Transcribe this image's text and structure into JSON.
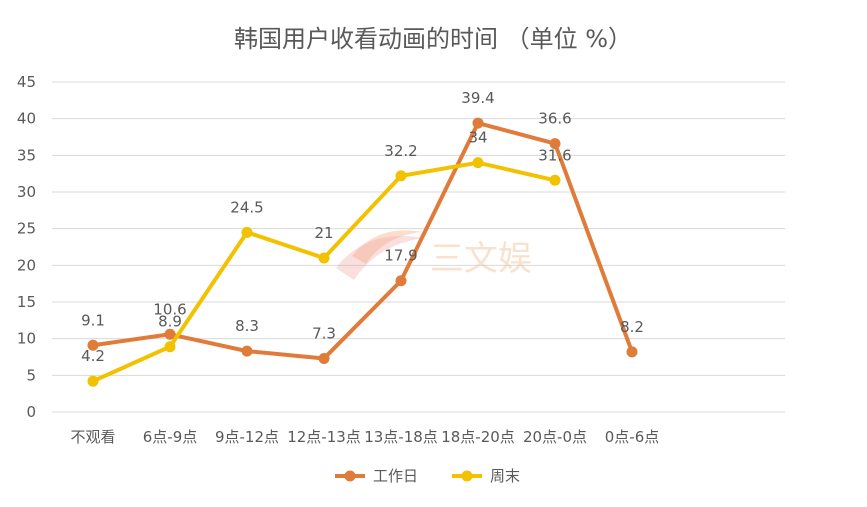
{
  "chart_data": {
    "type": "line",
    "title": "韩国用户收看动画的时间 （单位 %）",
    "categories": [
      "不观看",
      "6点-9点",
      "9点-12点",
      "12点-13点",
      "13点-18点",
      "18点-20点",
      "20点-0点",
      "0点-6点"
    ],
    "ylim": [
      0,
      45
    ],
    "yticks": [
      0,
      5,
      10,
      15,
      20,
      25,
      30,
      35,
      40,
      45
    ],
    "grid": true,
    "legend_position": "bottom",
    "series": [
      {
        "name": "工作日",
        "color": "#E07B39",
        "values": [
          9.1,
          10.6,
          8.3,
          7.3,
          17.9,
          39.4,
          36.6,
          8.2
        ],
        "labels": [
          "9.1",
          "10.6",
          "8.3",
          "7.3",
          "17.9",
          "39.4",
          "36.6",
          "8.2"
        ]
      },
      {
        "name": "周末",
        "color": "#F2C200",
        "values": [
          4.2,
          8.9,
          24.5,
          21,
          32.2,
          34,
          31.6,
          null
        ],
        "labels": [
          "4.2",
          "8.9",
          "24.5",
          "21",
          "32.2",
          "34",
          "31.6",
          null
        ]
      }
    ]
  },
  "watermark": {
    "text": "三文娱"
  }
}
